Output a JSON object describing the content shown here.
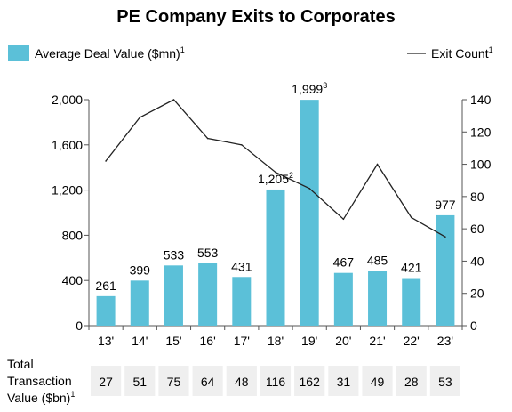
{
  "chart_data": {
    "type": "bar",
    "title": "PE Company Exits to Corporates",
    "categories": [
      "13'",
      "14'",
      "15'",
      "16'",
      "17'",
      "18'",
      "19'",
      "20'",
      "21'",
      "22'",
      "23'"
    ],
    "series": [
      {
        "name": "Average Deal Value ($mn)",
        "legend_superscript": "1",
        "type": "bar",
        "axis": "left",
        "color": "#5bc0d8",
        "values": [
          261,
          399,
          533,
          553,
          431,
          1205,
          1999,
          467,
          485,
          421,
          977
        ],
        "labels": [
          "261",
          "399",
          "533",
          "553",
          "431",
          "1,205",
          "1,999",
          "467",
          "485",
          "421",
          "977"
        ],
        "label_superscripts": [
          "",
          "",
          "",
          "",
          "",
          "2",
          "3",
          "",
          "",
          "",
          ""
        ]
      },
      {
        "name": "Exit Count",
        "legend_superscript": "1",
        "type": "line",
        "axis": "right",
        "color": "#222222",
        "values": [
          102,
          129,
          140,
          116,
          112,
          95,
          85,
          66,
          100,
          67,
          55
        ]
      }
    ],
    "y_left": {
      "min": 0,
      "max": 2000,
      "ticks": [
        0,
        400,
        800,
        1200,
        1600,
        2000
      ],
      "tick_labels": [
        "0",
        "400",
        "800",
        "1,200",
        "1,600",
        "2,000"
      ]
    },
    "y_right": {
      "min": 0,
      "max": 140,
      "ticks": [
        0,
        20,
        40,
        60,
        80,
        100,
        120,
        140
      ],
      "tick_labels": [
        "0",
        "20",
        "40",
        "60",
        "80",
        "100",
        "120",
        "140"
      ]
    },
    "grid": false,
    "legend_position": "top",
    "table": {
      "row_label_lines": [
        "Total",
        "Transaction",
        "Value ($bn)"
      ],
      "row_label_superscript": "1",
      "values": [
        "27",
        "51",
        "75",
        "64",
        "48",
        "116",
        "162",
        "31",
        "49",
        "28",
        "53"
      ],
      "cell_color": "#efefef"
    }
  }
}
